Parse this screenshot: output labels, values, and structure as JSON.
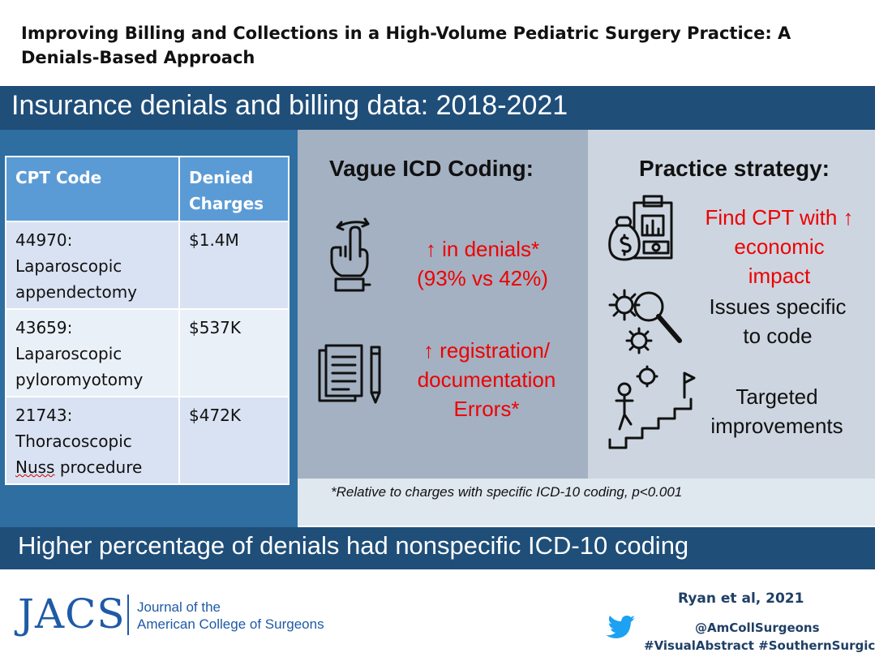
{
  "header": {
    "title": "Improving Billing and Collections in a High-Volume Pediatric Surgery Practice: A Denials-Based Approach",
    "band_text": "Insurance denials and billing data: 2018-2021"
  },
  "table": {
    "headers": [
      "CPT Code",
      "Denied Charges"
    ],
    "rows": [
      {
        "code": "44970:",
        "procedure_1": "Laparoscopic",
        "procedure_2": "appendectomy",
        "charge": "$1.4M"
      },
      {
        "code": "43659:",
        "procedure_1": "Laparoscopic",
        "procedure_2": "pyloromyotomy",
        "charge": "$537K"
      },
      {
        "code": "21743:",
        "procedure_1": "Thoracoscopic",
        "procedure_2_word1": "Nuss",
        "procedure_2_word2": "procedure",
        "charge": "$472K"
      }
    ]
  },
  "middle": {
    "heading": "Vague ICD Coding:",
    "finding1": {
      "line1": "↑ in denials*",
      "line2": "(93% vs 42%)"
    },
    "finding2": {
      "line1": "↑ registration/",
      "line2": "documentation",
      "line3": "Errors*"
    },
    "icons": [
      "hand-swipe-icon",
      "documents-pencil-icon"
    ]
  },
  "right": {
    "heading": "Practice strategy:",
    "item1": {
      "line1": "Find CPT with ↑",
      "line2": "economic",
      "line3": "impact"
    },
    "item2": {
      "line1": "Issues specific",
      "line2": "to code"
    },
    "item3": {
      "line1": "Targeted",
      "line2": "improvements"
    },
    "icons": [
      "money-report-icon",
      "gears-magnifier-icon",
      "stairs-goal-icon"
    ]
  },
  "footnote": "*Relative to charges with specific ICD-10 coding, p<0.001",
  "conclusion": "Higher percentage of denials had nonspecific ICD-10 coding",
  "footer": {
    "journal_mark": "JACS",
    "journal_name_line1": "Journal of the",
    "journal_name_line2": "American College of Surgeons",
    "author": "Ryan et al, 2021",
    "handle": "@AmCollSurgeons",
    "tags": "#VisualAbstract #SouthernSurgical"
  },
  "colors": {
    "band": "#1f4e79",
    "left_panel": "#2e6ea0",
    "middle_panel": "#a3b1c2",
    "right_panel": "#cdd6e0",
    "table_header": "#5b9bd5",
    "emphasis_red": "#ee0000",
    "journal_blue": "#1f5aa6"
  }
}
